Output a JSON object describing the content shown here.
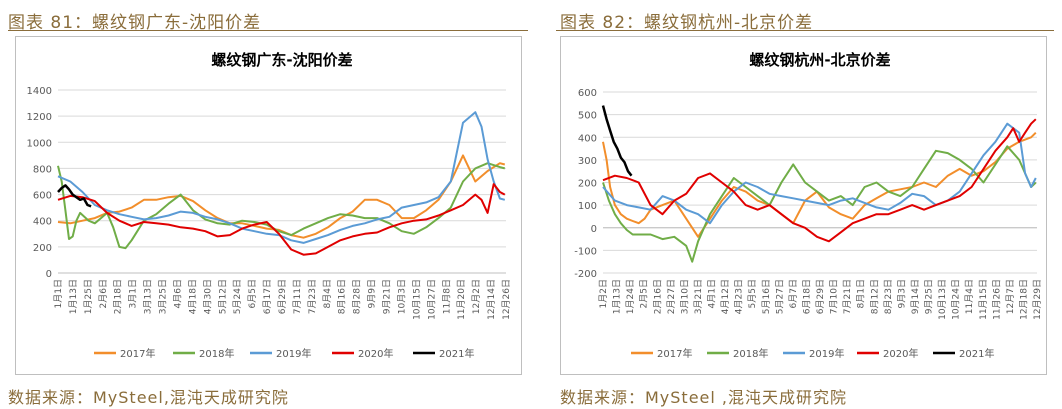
{
  "figures": [
    {
      "title": "图表 81：螺纹钢广东-沈阳价差",
      "source": "数据来源：MySteel,混沌天成研究院"
    },
    {
      "title": "图表 82：螺纹钢杭州-北京价差",
      "source": "数据来源：MySteel ,混沌天成研究院"
    }
  ],
  "chart_data": [
    {
      "type": "line",
      "title": "螺纹钢广东-沈阳价差",
      "ylim": [
        0,
        1400
      ],
      "yticks": [
        0,
        200,
        400,
        600,
        800,
        1000,
        1200,
        1400
      ],
      "xrange": [
        0,
        365
      ],
      "xticks": [
        "1月1日",
        "1月13日",
        "1月25日",
        "2月6日",
        "2月18日",
        "3月1日",
        "3月13日",
        "3月25日",
        "4月6日",
        "4月18日",
        "4月30日",
        "5月12日",
        "5月24日",
        "6月5日",
        "6月17日",
        "6月29日",
        "7月11日",
        "7月23日",
        "8月4日",
        "8月16日",
        "8月28日",
        "9月9日",
        "9月21日",
        "10月3日",
        "10月15日",
        "10月27日",
        "11月8日",
        "11月20日",
        "12月2日",
        "12月14日",
        "12月26日"
      ],
      "grid": true,
      "legend": "bottom",
      "series": [
        {
          "name": "2017年",
          "color": "#F28E2B",
          "x": [
            0,
            10,
            20,
            30,
            40,
            50,
            60,
            70,
            80,
            90,
            100,
            110,
            120,
            130,
            140,
            150,
            160,
            170,
            180,
            190,
            200,
            210,
            220,
            230,
            240,
            250,
            260,
            270,
            280,
            290,
            300,
            310,
            320,
            330,
            340,
            350,
            360,
            364
          ],
          "y": [
            390,
            380,
            400,
            420,
            460,
            470,
            500,
            560,
            560,
            580,
            590,
            550,
            480,
            420,
            380,
            380,
            360,
            340,
            330,
            290,
            270,
            300,
            350,
            420,
            470,
            560,
            560,
            520,
            420,
            420,
            480,
            560,
            700,
            900,
            700,
            780,
            840,
            830
          ]
        },
        {
          "name": "2018年",
          "color": "#70AD47",
          "x": [
            0,
            3,
            6,
            9,
            12,
            15,
            18,
            25,
            30,
            35,
            40,
            45,
            50,
            55,
            60,
            70,
            80,
            90,
            100,
            110,
            120,
            130,
            140,
            150,
            160,
            170,
            180,
            190,
            200,
            210,
            220,
            230,
            240,
            250,
            260,
            270,
            280,
            290,
            300,
            310,
            320,
            330,
            340,
            350,
            360,
            364
          ],
          "y": [
            820,
            700,
            480,
            260,
            280,
            400,
            460,
            400,
            380,
            420,
            460,
            350,
            200,
            190,
            250,
            400,
            450,
            530,
            600,
            480,
            410,
            380,
            370,
            400,
            390,
            370,
            320,
            290,
            340,
            380,
            420,
            450,
            440,
            420,
            420,
            380,
            320,
            300,
            350,
            420,
            500,
            700,
            800,
            840,
            810,
            800
          ]
        },
        {
          "name": "2019年",
          "color": "#5B9BD5",
          "x": [
            0,
            10,
            20,
            30,
            40,
            50,
            60,
            70,
            80,
            90,
            100,
            110,
            120,
            130,
            140,
            150,
            160,
            170,
            180,
            190,
            200,
            210,
            220,
            230,
            240,
            250,
            260,
            270,
            280,
            290,
            300,
            310,
            320,
            330,
            340,
            345,
            350,
            355,
            360,
            364
          ],
          "y": [
            740,
            700,
            620,
            520,
            480,
            450,
            430,
            410,
            420,
            440,
            470,
            460,
            430,
            410,
            380,
            340,
            320,
            300,
            290,
            250,
            230,
            260,
            290,
            330,
            360,
            380,
            410,
            430,
            500,
            520,
            540,
            580,
            700,
            1150,
            1230,
            1120,
            870,
            700,
            570,
            560
          ]
        },
        {
          "name": "2020年",
          "color": "#E00000",
          "x": [
            0,
            10,
            20,
            30,
            40,
            50,
            60,
            70,
            80,
            90,
            100,
            110,
            120,
            130,
            140,
            150,
            160,
            170,
            180,
            190,
            200,
            210,
            220,
            230,
            240,
            250,
            260,
            270,
            280,
            290,
            300,
            310,
            320,
            330,
            340,
            345,
            350,
            355,
            360,
            364
          ],
          "y": [
            560,
            590,
            580,
            550,
            460,
            400,
            360,
            390,
            380,
            370,
            350,
            340,
            320,
            280,
            290,
            340,
            370,
            390,
            300,
            180,
            140,
            150,
            200,
            250,
            280,
            300,
            310,
            350,
            380,
            400,
            410,
            440,
            480,
            520,
            600,
            560,
            460,
            680,
            620,
            600
          ]
        },
        {
          "name": "2021年",
          "color": "#000000",
          "x": [
            0,
            3,
            6,
            9,
            12,
            15,
            18,
            21,
            24,
            27
          ],
          "y": [
            620,
            650,
            670,
            640,
            600,
            580,
            560,
            570,
            520,
            510
          ]
        }
      ]
    },
    {
      "type": "line",
      "title": "螺纹钢杭州-北京价差",
      "ylim": [
        -200,
        600
      ],
      "yticks": [
        -200,
        -100,
        0,
        100,
        200,
        300,
        400,
        500,
        600
      ],
      "xrange": [
        0,
        365
      ],
      "xticks": [
        "1月2日",
        "1月13日",
        "1月24日",
        "2月5日",
        "2月16日",
        "2月27日",
        "3月10日",
        "3月21日",
        "4月1日",
        "4月12日",
        "4月23日",
        "5月5日",
        "5月16日",
        "5月27日",
        "6月7日",
        "6月18日",
        "6月29日",
        "7月10日",
        "7月21日",
        "8月1日",
        "8月12日",
        "8月23日",
        "9月3日",
        "9月14日",
        "9月25日",
        "10月13日",
        "10月24日",
        "11月4日",
        "11月15日",
        "11月26日",
        "12月7日",
        "12月18日",
        "12月29日"
      ],
      "grid": true,
      "legend": "bottom",
      "series": [
        {
          "name": "2017年",
          "color": "#F28E2B",
          "x": [
            0,
            3,
            6,
            10,
            15,
            20,
            25,
            30,
            35,
            40,
            50,
            60,
            70,
            80,
            90,
            100,
            110,
            120,
            130,
            140,
            150,
            160,
            170,
            180,
            190,
            200,
            210,
            220,
            230,
            240,
            250,
            260,
            270,
            280,
            290,
            300,
            310,
            320,
            330,
            340,
            350,
            360,
            364
          ],
          "y": [
            380,
            300,
            180,
            100,
            60,
            40,
            30,
            20,
            40,
            80,
            100,
            120,
            40,
            -40,
            40,
            120,
            180,
            160,
            120,
            100,
            60,
            20,
            120,
            160,
            90,
            60,
            40,
            100,
            130,
            160,
            170,
            180,
            200,
            180,
            230,
            260,
            230,
            250,
            290,
            350,
            380,
            400,
            420
          ]
        },
        {
          "name": "2018年",
          "color": "#70AD47",
          "x": [
            0,
            5,
            10,
            15,
            20,
            25,
            30,
            40,
            50,
            60,
            70,
            75,
            80,
            90,
            100,
            110,
            120,
            130,
            140,
            150,
            160,
            170,
            180,
            190,
            200,
            210,
            220,
            230,
            240,
            250,
            260,
            270,
            280,
            290,
            300,
            310,
            320,
            330,
            340,
            350,
            360,
            364
          ],
          "y": [
            200,
            120,
            60,
            20,
            -10,
            -30,
            -30,
            -30,
            -50,
            -40,
            -80,
            -150,
            -60,
            60,
            140,
            220,
            180,
            140,
            100,
            200,
            280,
            200,
            160,
            120,
            140,
            100,
            180,
            200,
            160,
            140,
            180,
            260,
            340,
            330,
            300,
            260,
            200,
            280,
            360,
            300,
            180,
            200
          ]
        },
        {
          "name": "2019年",
          "color": "#5B9BD5",
          "x": [
            0,
            10,
            20,
            30,
            40,
            50,
            60,
            70,
            80,
            90,
            100,
            110,
            120,
            130,
            140,
            150,
            160,
            170,
            180,
            190,
            200,
            210,
            220,
            230,
            240,
            250,
            260,
            270,
            280,
            290,
            300,
            310,
            320,
            330,
            340,
            350,
            355,
            360,
            364
          ],
          "y": [
            180,
            120,
            100,
            90,
            80,
            140,
            120,
            80,
            60,
            20,
            100,
            160,
            200,
            180,
            150,
            140,
            130,
            120,
            110,
            100,
            120,
            130,
            110,
            90,
            80,
            110,
            150,
            140,
            100,
            120,
            160,
            240,
            320,
            380,
            460,
            420,
            240,
            180,
            220
          ]
        },
        {
          "name": "2020年",
          "color": "#E00000",
          "x": [
            0,
            10,
            20,
            30,
            40,
            50,
            60,
            70,
            80,
            90,
            100,
            110,
            120,
            130,
            140,
            150,
            160,
            170,
            180,
            190,
            200,
            210,
            220,
            230,
            240,
            250,
            260,
            270,
            280,
            290,
            300,
            310,
            320,
            330,
            340,
            345,
            350,
            355,
            360,
            364
          ],
          "y": [
            210,
            230,
            220,
            200,
            100,
            60,
            120,
            150,
            220,
            240,
            200,
            160,
            100,
            80,
            100,
            60,
            20,
            0,
            -40,
            -60,
            -20,
            20,
            40,
            60,
            60,
            80,
            100,
            80,
            100,
            120,
            140,
            180,
            260,
            340,
            400,
            440,
            380,
            420,
            460,
            480
          ]
        },
        {
          "name": "2021年",
          "color": "#000000",
          "x": [
            0,
            3,
            6,
            9,
            12,
            15,
            18,
            21,
            24
          ],
          "y": [
            540,
            480,
            430,
            380,
            350,
            310,
            290,
            250,
            230
          ]
        }
      ]
    }
  ]
}
